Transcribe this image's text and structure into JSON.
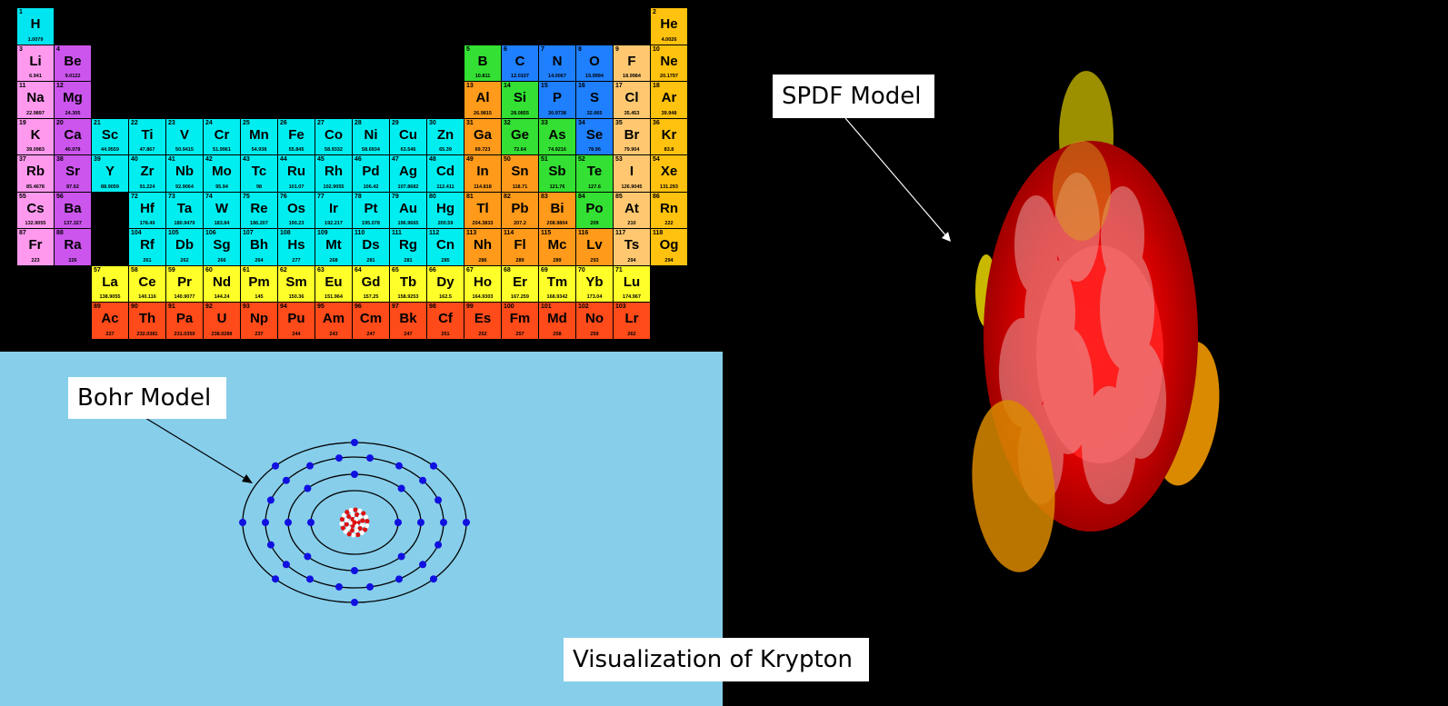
{
  "labels": {
    "bohr": "Bohr Model",
    "spdf": "SPDF Model",
    "title": "Visualization of Krypton"
  },
  "colors": {
    "background": "#000000",
    "bohr_background": "#87CEEB",
    "nonmetal": "#33E033",
    "metalloid_like": "#1E7FFF",
    "halogen": "#FFC870",
    "noble_gas": "#FFC20E",
    "alkali": "#FF99EE",
    "alkaline_earth": "#CC55EE",
    "transition": "#00EEF0",
    "post_transition": "#FF9A1A",
    "lanthanide": "#FFFF2A",
    "actinide": "#FF4A1A",
    "hydrogen": "#00E5F0",
    "electron": "#1010E0"
  },
  "bohr": {
    "element": "Krypton",
    "shells": [
      2,
      8,
      18,
      8
    ]
  },
  "periodic_table": [
    {
      "n": "1",
      "s": "H",
      "m": "1.0079",
      "c": "hydrogen",
      "col": 1,
      "row": 1
    },
    {
      "n": "2",
      "s": "He",
      "m": "4.0026",
      "c": "noble_gas",
      "col": 18,
      "row": 1
    },
    {
      "n": "3",
      "s": "Li",
      "m": "6.941",
      "c": "alkali",
      "col": 1,
      "row": 2
    },
    {
      "n": "4",
      "s": "Be",
      "m": "9.0122",
      "c": "alkaline_earth",
      "col": 2,
      "row": 2
    },
    {
      "n": "5",
      "s": "B",
      "m": "10.811",
      "c": "nonmetal",
      "col": 13,
      "row": 2
    },
    {
      "n": "6",
      "s": "C",
      "m": "12.0107",
      "c": "metalloid_like",
      "col": 14,
      "row": 2
    },
    {
      "n": "7",
      "s": "N",
      "m": "14.0067",
      "c": "metalloid_like",
      "col": 15,
      "row": 2
    },
    {
      "n": "8",
      "s": "O",
      "m": "15.9994",
      "c": "metalloid_like",
      "col": 16,
      "row": 2
    },
    {
      "n": "9",
      "s": "F",
      "m": "18.9984",
      "c": "halogen",
      "col": 17,
      "row": 2
    },
    {
      "n": "10",
      "s": "Ne",
      "m": "20.1797",
      "c": "noble_gas",
      "col": 18,
      "row": 2
    },
    {
      "n": "11",
      "s": "Na",
      "m": "22.9897",
      "c": "alkali",
      "col": 1,
      "row": 3
    },
    {
      "n": "12",
      "s": "Mg",
      "m": "24.305",
      "c": "alkaline_earth",
      "col": 2,
      "row": 3
    },
    {
      "n": "13",
      "s": "Al",
      "m": "26.9815",
      "c": "post_transition",
      "col": 13,
      "row": 3
    },
    {
      "n": "14",
      "s": "Si",
      "m": "28.0855",
      "c": "nonmetal",
      "col": 14,
      "row": 3
    },
    {
      "n": "15",
      "s": "P",
      "m": "30.9738",
      "c": "metalloid_like",
      "col": 15,
      "row": 3
    },
    {
      "n": "16",
      "s": "S",
      "m": "32.065",
      "c": "metalloid_like",
      "col": 16,
      "row": 3
    },
    {
      "n": "17",
      "s": "Cl",
      "m": "35.453",
      "c": "halogen",
      "col": 17,
      "row": 3
    },
    {
      "n": "18",
      "s": "Ar",
      "m": "39.948",
      "c": "noble_gas",
      "col": 18,
      "row": 3
    },
    {
      "n": "19",
      "s": "K",
      "m": "39.0983",
      "c": "alkali",
      "col": 1,
      "row": 4
    },
    {
      "n": "20",
      "s": "Ca",
      "m": "40.078",
      "c": "alkaline_earth",
      "col": 2,
      "row": 4
    },
    {
      "n": "21",
      "s": "Sc",
      "m": "44.9559",
      "c": "transition",
      "col": 3,
      "row": 4
    },
    {
      "n": "22",
      "s": "Ti",
      "m": "47.867",
      "c": "transition",
      "col": 4,
      "row": 4
    },
    {
      "n": "23",
      "s": "V",
      "m": "50.9415",
      "c": "transition",
      "col": 5,
      "row": 4
    },
    {
      "n": "24",
      "s": "Cr",
      "m": "51.9961",
      "c": "transition",
      "col": 6,
      "row": 4
    },
    {
      "n": "25",
      "s": "Mn",
      "m": "54.938",
      "c": "transition",
      "col": 7,
      "row": 4
    },
    {
      "n": "26",
      "s": "Fe",
      "m": "55.845",
      "c": "transition",
      "col": 8,
      "row": 4
    },
    {
      "n": "27",
      "s": "Co",
      "m": "58.9332",
      "c": "transition",
      "col": 9,
      "row": 4
    },
    {
      "n": "28",
      "s": "Ni",
      "m": "58.6934",
      "c": "transition",
      "col": 10,
      "row": 4
    },
    {
      "n": "29",
      "s": "Cu",
      "m": "63.546",
      "c": "transition",
      "col": 11,
      "row": 4
    },
    {
      "n": "30",
      "s": "Zn",
      "m": "65.39",
      "c": "transition",
      "col": 12,
      "row": 4
    },
    {
      "n": "31",
      "s": "Ga",
      "m": "69.723",
      "c": "post_transition",
      "col": 13,
      "row": 4
    },
    {
      "n": "32",
      "s": "Ge",
      "m": "72.64",
      "c": "nonmetal",
      "col": 14,
      "row": 4
    },
    {
      "n": "33",
      "s": "As",
      "m": "74.9216",
      "c": "nonmetal",
      "col": 15,
      "row": 4
    },
    {
      "n": "34",
      "s": "Se",
      "m": "78.96",
      "c": "metalloid_like",
      "col": 16,
      "row": 4
    },
    {
      "n": "35",
      "s": "Br",
      "m": "79.904",
      "c": "halogen",
      "col": 17,
      "row": 4
    },
    {
      "n": "36",
      "s": "Kr",
      "m": "83.8",
      "c": "noble_gas",
      "col": 18,
      "row": 4
    },
    {
      "n": "37",
      "s": "Rb",
      "m": "85.4678",
      "c": "alkali",
      "col": 1,
      "row": 5
    },
    {
      "n": "38",
      "s": "Sr",
      "m": "87.62",
      "c": "alkaline_earth",
      "col": 2,
      "row": 5
    },
    {
      "n": "39",
      "s": "Y",
      "m": "88.9059",
      "c": "transition",
      "col": 3,
      "row": 5
    },
    {
      "n": "40",
      "s": "Zr",
      "m": "91.224",
      "c": "transition",
      "col": 4,
      "row": 5
    },
    {
      "n": "41",
      "s": "Nb",
      "m": "92.9064",
      "c": "transition",
      "col": 5,
      "row": 5
    },
    {
      "n": "42",
      "s": "Mo",
      "m": "95.94",
      "c": "transition",
      "col": 6,
      "row": 5
    },
    {
      "n": "43",
      "s": "Tc",
      "m": "98",
      "c": "transition",
      "col": 7,
      "row": 5
    },
    {
      "n": "44",
      "s": "Ru",
      "m": "101.07",
      "c": "transition",
      "col": 8,
      "row": 5
    },
    {
      "n": "45",
      "s": "Rh",
      "m": "102.9055",
      "c": "transition",
      "col": 9,
      "row": 5
    },
    {
      "n": "46",
      "s": "Pd",
      "m": "106.42",
      "c": "transition",
      "col": 10,
      "row": 5
    },
    {
      "n": "47",
      "s": "Ag",
      "m": "107.8682",
      "c": "transition",
      "col": 11,
      "row": 5
    },
    {
      "n": "48",
      "s": "Cd",
      "m": "112.411",
      "c": "transition",
      "col": 12,
      "row": 5
    },
    {
      "n": "49",
      "s": "In",
      "m": "114.818",
      "c": "post_transition",
      "col": 13,
      "row": 5
    },
    {
      "n": "50",
      "s": "Sn",
      "m": "118.71",
      "c": "post_transition",
      "col": 14,
      "row": 5
    },
    {
      "n": "51",
      "s": "Sb",
      "m": "121.76",
      "c": "nonmetal",
      "col": 15,
      "row": 5
    },
    {
      "n": "52",
      "s": "Te",
      "m": "127.6",
      "c": "nonmetal",
      "col": 16,
      "row": 5
    },
    {
      "n": "53",
      "s": "I",
      "m": "126.9045",
      "c": "halogen",
      "col": 17,
      "row": 5
    },
    {
      "n": "54",
      "s": "Xe",
      "m": "131.293",
      "c": "noble_gas",
      "col": 18,
      "row": 5
    },
    {
      "n": "55",
      "s": "Cs",
      "m": "132.9055",
      "c": "alkali",
      "col": 1,
      "row": 6
    },
    {
      "n": "56",
      "s": "Ba",
      "m": "137.327",
      "c": "alkaline_earth",
      "col": 2,
      "row": 6
    },
    {
      "n": "72",
      "s": "Hf",
      "m": "178.49",
      "c": "transition",
      "col": 4,
      "row": 6
    },
    {
      "n": "73",
      "s": "Ta",
      "m": "180.9479",
      "c": "transition",
      "col": 5,
      "row": 6
    },
    {
      "n": "74",
      "s": "W",
      "m": "183.84",
      "c": "transition",
      "col": 6,
      "row": 6
    },
    {
      "n": "75",
      "s": "Re",
      "m": "186.207",
      "c": "transition",
      "col": 7,
      "row": 6
    },
    {
      "n": "76",
      "s": "Os",
      "m": "190.23",
      "c": "transition",
      "col": 8,
      "row": 6
    },
    {
      "n": "77",
      "s": "Ir",
      "m": "192.217",
      "c": "transition",
      "col": 9,
      "row": 6
    },
    {
      "n": "78",
      "s": "Pt",
      "m": "195.078",
      "c": "transition",
      "col": 10,
      "row": 6
    },
    {
      "n": "79",
      "s": "Au",
      "m": "196.9665",
      "c": "transition",
      "col": 11,
      "row": 6
    },
    {
      "n": "80",
      "s": "Hg",
      "m": "200.59",
      "c": "transition",
      "col": 12,
      "row": 6
    },
    {
      "n": "81",
      "s": "Tl",
      "m": "204.3833",
      "c": "post_transition",
      "col": 13,
      "row": 6
    },
    {
      "n": "82",
      "s": "Pb",
      "m": "207.2",
      "c": "post_transition",
      "col": 14,
      "row": 6
    },
    {
      "n": "83",
      "s": "Bi",
      "m": "208.9804",
      "c": "post_transition",
      "col": 15,
      "row": 6
    },
    {
      "n": "84",
      "s": "Po",
      "m": "209",
      "c": "nonmetal",
      "col": 16,
      "row": 6
    },
    {
      "n": "85",
      "s": "At",
      "m": "210",
      "c": "halogen",
      "col": 17,
      "row": 6
    },
    {
      "n": "86",
      "s": "Rn",
      "m": "222",
      "c": "noble_gas",
      "col": 18,
      "row": 6
    },
    {
      "n": "87",
      "s": "Fr",
      "m": "223",
      "c": "alkali",
      "col": 1,
      "row": 7
    },
    {
      "n": "88",
      "s": "Ra",
      "m": "226",
      "c": "alkaline_earth",
      "col": 2,
      "row": 7
    },
    {
      "n": "104",
      "s": "Rf",
      "m": "261",
      "c": "transition",
      "col": 4,
      "row": 7
    },
    {
      "n": "105",
      "s": "Db",
      "m": "262",
      "c": "transition",
      "col": 5,
      "row": 7
    },
    {
      "n": "106",
      "s": "Sg",
      "m": "266",
      "c": "transition",
      "col": 6,
      "row": 7
    },
    {
      "n": "107",
      "s": "Bh",
      "m": "264",
      "c": "transition",
      "col": 7,
      "row": 7
    },
    {
      "n": "108",
      "s": "Hs",
      "m": "277",
      "c": "transition",
      "col": 8,
      "row": 7
    },
    {
      "n": "109",
      "s": "Mt",
      "m": "268",
      "c": "transition",
      "col": 9,
      "row": 7
    },
    {
      "n": "110",
      "s": "Ds",
      "m": "281",
      "c": "transition",
      "col": 10,
      "row": 7
    },
    {
      "n": "111",
      "s": "Rg",
      "m": "281",
      "c": "transition",
      "col": 11,
      "row": 7
    },
    {
      "n": "112",
      "s": "Cn",
      "m": "285",
      "c": "transition",
      "col": 12,
      "row": 7
    },
    {
      "n": "113",
      "s": "Nh",
      "m": "286",
      "c": "post_transition",
      "col": 13,
      "row": 7
    },
    {
      "n": "114",
      "s": "Fl",
      "m": "289",
      "c": "post_transition",
      "col": 14,
      "row": 7
    },
    {
      "n": "115",
      "s": "Mc",
      "m": "289",
      "c": "post_transition",
      "col": 15,
      "row": 7
    },
    {
      "n": "116",
      "s": "Lv",
      "m": "293",
      "c": "post_transition",
      "col": 16,
      "row": 7
    },
    {
      "n": "117",
      "s": "Ts",
      "m": "294",
      "c": "halogen",
      "col": 17,
      "row": 7
    },
    {
      "n": "118",
      "s": "Og",
      "m": "294",
      "c": "noble_gas",
      "col": 18,
      "row": 7
    },
    {
      "n": "57",
      "s": "La",
      "m": "138.9055",
      "c": "lanthanide",
      "col": 3,
      "row": 8
    },
    {
      "n": "58",
      "s": "Ce",
      "m": "140.116",
      "c": "lanthanide",
      "col": 4,
      "row": 8
    },
    {
      "n": "59",
      "s": "Pr",
      "m": "140.9077",
      "c": "lanthanide",
      "col": 5,
      "row": 8
    },
    {
      "n": "60",
      "s": "Nd",
      "m": "144.24",
      "c": "lanthanide",
      "col": 6,
      "row": 8
    },
    {
      "n": "61",
      "s": "Pm",
      "m": "145",
      "c": "lanthanide",
      "col": 7,
      "row": 8
    },
    {
      "n": "62",
      "s": "Sm",
      "m": "150.36",
      "c": "lanthanide",
      "col": 8,
      "row": 8
    },
    {
      "n": "63",
      "s": "Eu",
      "m": "151.964",
      "c": "lanthanide",
      "col": 9,
      "row": 8
    },
    {
      "n": "64",
      "s": "Gd",
      "m": "157.25",
      "c": "lanthanide",
      "col": 10,
      "row": 8
    },
    {
      "n": "65",
      "s": "Tb",
      "m": "158.9253",
      "c": "lanthanide",
      "col": 11,
      "row": 8
    },
    {
      "n": "66",
      "s": "Dy",
      "m": "162.5",
      "c": "lanthanide",
      "col": 12,
      "row": 8
    },
    {
      "n": "67",
      "s": "Ho",
      "m": "164.9303",
      "c": "lanthanide",
      "col": 13,
      "row": 8
    },
    {
      "n": "68",
      "s": "Er",
      "m": "167.259",
      "c": "lanthanide",
      "col": 14,
      "row": 8
    },
    {
      "n": "69",
      "s": "Tm",
      "m": "168.9342",
      "c": "lanthanide",
      "col": 15,
      "row": 8
    },
    {
      "n": "70",
      "s": "Yb",
      "m": "173.04",
      "c": "lanthanide",
      "col": 16,
      "row": 8
    },
    {
      "n": "71",
      "s": "Lu",
      "m": "174.967",
      "c": "lanthanide",
      "col": 17,
      "row": 8
    },
    {
      "n": "89",
      "s": "Ac",
      "m": "227",
      "c": "actinide",
      "col": 3,
      "row": 9
    },
    {
      "n": "90",
      "s": "Th",
      "m": "232.0381",
      "c": "actinide",
      "col": 4,
      "row": 9
    },
    {
      "n": "91",
      "s": "Pa",
      "m": "231.0359",
      "c": "actinide",
      "col": 5,
      "row": 9
    },
    {
      "n": "92",
      "s": "U",
      "m": "238.0289",
      "c": "actinide",
      "col": 6,
      "row": 9
    },
    {
      "n": "93",
      "s": "Np",
      "m": "237",
      "c": "actinide",
      "col": 7,
      "row": 9
    },
    {
      "n": "94",
      "s": "Pu",
      "m": "244",
      "c": "actinide",
      "col": 8,
      "row": 9
    },
    {
      "n": "95",
      "s": "Am",
      "m": "243",
      "c": "actinide",
      "col": 9,
      "row": 9
    },
    {
      "n": "96",
      "s": "Cm",
      "m": "247",
      "c": "actinide",
      "col": 10,
      "row": 9
    },
    {
      "n": "97",
      "s": "Bk",
      "m": "247",
      "c": "actinide",
      "col": 11,
      "row": 9
    },
    {
      "n": "98",
      "s": "Cf",
      "m": "251",
      "c": "actinide",
      "col": 12,
      "row": 9
    },
    {
      "n": "99",
      "s": "Es",
      "m": "252",
      "c": "actinide",
      "col": 13,
      "row": 9
    },
    {
      "n": "100",
      "s": "Fm",
      "m": "257",
      "c": "actinide",
      "col": 14,
      "row": 9
    },
    {
      "n": "101",
      "s": "Md",
      "m": "258",
      "c": "actinide",
      "col": 15,
      "row": 9
    },
    {
      "n": "102",
      "s": "No",
      "m": "259",
      "c": "actinide",
      "col": 16,
      "row": 9
    },
    {
      "n": "103",
      "s": "Lr",
      "m": "262",
      "c": "actinide",
      "col": 17,
      "row": 9
    }
  ]
}
